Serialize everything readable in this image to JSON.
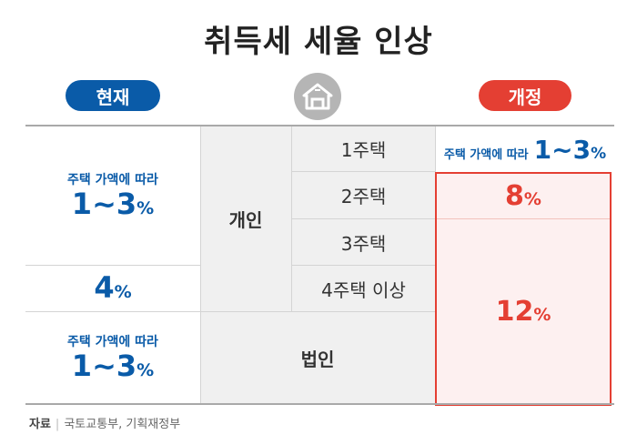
{
  "title": "취득세 세율 인상",
  "headers": {
    "current": "현재",
    "revised": "개정"
  },
  "icons": {
    "house": "house-icon"
  },
  "table": {
    "individual_label": "개인",
    "corporate_label": "법인",
    "rows": [
      {
        "type": "1주택"
      },
      {
        "type": "2주택"
      },
      {
        "type": "3주택"
      },
      {
        "type": "4주택 이상"
      }
    ],
    "current": {
      "one_to_three_caption": "주택 가액에 따라",
      "one_to_three_value": "1~3",
      "four_plus_value": "4",
      "corporate_caption": "주택 가액에 따라",
      "corporate_value": "1~3",
      "pct": "%"
    },
    "revised": {
      "one_house_caption": "주택 가액에 따라",
      "one_house_value": "1~3",
      "two_house_value": "8",
      "three_plus_and_corp_value": "12",
      "pct": "%"
    }
  },
  "source": {
    "label": "자료",
    "separator": "|",
    "text": "국토교통부, 기획재정부"
  },
  "colors": {
    "current_blue": "#0a5ba8",
    "revised_red": "#e43f33",
    "grey_cell": "#f0f0f0"
  }
}
